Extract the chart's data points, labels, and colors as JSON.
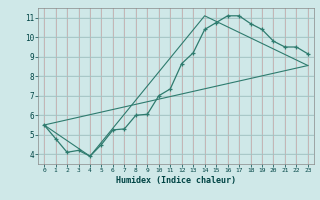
{
  "xlabel": "Humidex (Indice chaleur)",
  "xlim": [
    -0.5,
    23.5
  ],
  "ylim": [
    3.5,
    11.5
  ],
  "xticks": [
    0,
    1,
    2,
    3,
    4,
    5,
    6,
    7,
    8,
    9,
    10,
    11,
    12,
    13,
    14,
    15,
    16,
    17,
    18,
    19,
    20,
    21,
    22,
    23
  ],
  "yticks": [
    4,
    5,
    6,
    7,
    8,
    9,
    10,
    11
  ],
  "background_color": "#cfe8e8",
  "grid_color_major": "#cc9999",
  "grid_color_minor": "#aacccc",
  "line_color": "#2e7b6e",
  "line1_x": [
    0,
    1,
    2,
    3,
    4,
    5,
    6,
    7,
    8,
    9,
    10,
    11,
    12,
    13,
    14,
    15,
    16,
    17,
    18,
    19,
    20,
    21,
    22,
    23
  ],
  "line1_y": [
    5.5,
    4.8,
    4.1,
    4.2,
    3.9,
    4.5,
    5.25,
    5.3,
    6.0,
    6.05,
    7.0,
    7.35,
    8.65,
    9.2,
    10.4,
    10.75,
    11.1,
    11.1,
    10.7,
    10.4,
    9.8,
    9.5,
    9.5,
    9.15
  ],
  "line2_x": [
    0,
    4,
    14,
    23
  ],
  "line2_y": [
    5.5,
    3.9,
    11.1,
    8.55
  ],
  "line3_x": [
    0,
    23
  ],
  "line3_y": [
    5.5,
    8.55
  ]
}
